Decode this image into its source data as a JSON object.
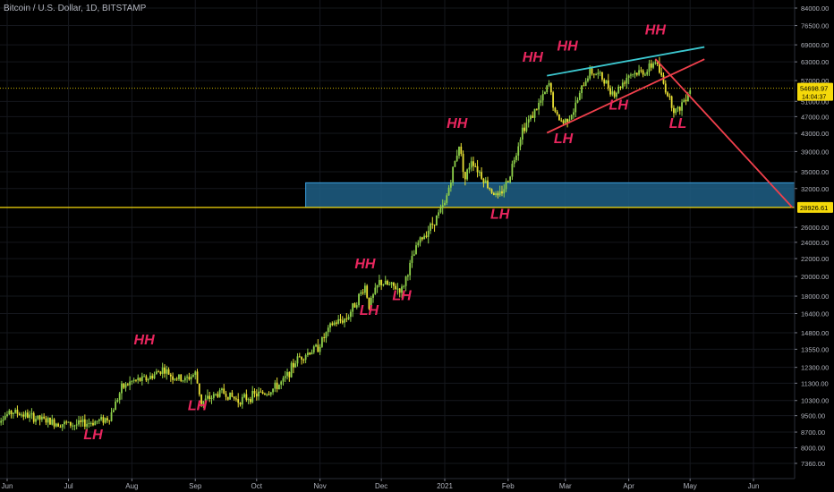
{
  "chart_data": {
    "type": "candlestick",
    "title": "Bitcoin / U.S. Dollar, 1D, BITSTAMP",
    "scale": "log",
    "y_tick_labels": [
      "84000.00",
      "76500.00",
      "69000.00",
      "63000.00",
      "57000.00",
      "51000.00",
      "47000.00",
      "43000.00",
      "39000.00",
      "35000.00",
      "32000.00",
      "28926.61",
      "26000.00",
      "24000.00",
      "22000.00",
      "20000.00",
      "18000.00",
      "16400.00",
      "14800.00",
      "13550.00",
      "12300.00",
      "11300.00",
      "10300.00",
      "9500.00",
      "8700.00",
      "8000.00",
      "7360.00"
    ],
    "x_tick_labels": [
      "Jun",
      "Jul",
      "Aug",
      "Sep",
      "Oct",
      "Nov",
      "Dec",
      "2021",
      "Feb",
      "Mar",
      "Apr",
      "May",
      "Jun"
    ],
    "current_price": {
      "value": 54698.97,
      "label": "54698.97",
      "countdown": "14:04:37"
    },
    "horizontal_level": {
      "value": 28926.61,
      "label": "28926.61",
      "color": "#f5d90a"
    },
    "support_zone": {
      "low": 28926.61,
      "high": 33000,
      "start": "Oct 26",
      "color": "#2a8fd6"
    },
    "annotations": [
      {
        "text": "HH",
        "date": "Aug 8",
        "price": 13900
      },
      {
        "text": "LH",
        "date": "Jul 14",
        "price": 8380
      },
      {
        "text": "LH",
        "date": "Sep 3",
        "price": 9780
      },
      {
        "text": "HH",
        "date": "Nov 24",
        "price": 20900
      },
      {
        "text": "LH",
        "date": "Nov 26",
        "price": 16300
      },
      {
        "text": "LH",
        "date": "Dec 12",
        "price": 17600
      },
      {
        "text": "HH",
        "date": "Jan 7",
        "price": 44300
      },
      {
        "text": "LH",
        "date": "Jan 28",
        "price": 27200
      },
      {
        "text": "HH",
        "date": "Feb 13",
        "price": 63000
      },
      {
        "text": "LH",
        "date": "Feb 28",
        "price": 40800
      },
      {
        "text": "HH",
        "date": "Mar 2",
        "price": 67000
      },
      {
        "text": "LH",
        "date": "Mar 27",
        "price": 48800
      },
      {
        "text": "HH",
        "date": "Apr 14",
        "price": 73000
      },
      {
        "text": "LL",
        "date": "Apr 25",
        "price": 44200
      }
    ],
    "trendlines": [
      {
        "name": "upper",
        "color": "#3cc8d0",
        "from": {
          "date": "Feb 20",
          "price": 58500
        },
        "to": {
          "date": "May 8",
          "price": 68200
        }
      },
      {
        "name": "lower",
        "color": "#f0404c",
        "from": {
          "date": "Feb 20",
          "price": 43100
        },
        "to": {
          "date": "May 8",
          "price": 63900
        }
      },
      {
        "name": "projection",
        "color": "#f0404c",
        "from": {
          "date": "Apr 14",
          "price": 64000
        },
        "to": {
          "date": "Jun 20",
          "price": 28926.61
        }
      }
    ],
    "price_path": [
      [
        "May 26",
        9200
      ],
      [
        "Jun 5",
        9700
      ],
      [
        "Jun 15",
        9400
      ],
      [
        "Jun 25",
        9150
      ],
      [
        "Jul 5",
        9050
      ],
      [
        "Jul 15",
        9200
      ],
      [
        "Jul 22",
        9400
      ],
      [
        "Jul 28",
        11000
      ],
      [
        "Aug 2",
        11400
      ],
      [
        "Aug 10",
        11600
      ],
      [
        "Aug 17",
        12200
      ],
      [
        "Aug 22",
        11700
      ],
      [
        "Aug 28",
        11500
      ],
      [
        "Sep 2",
        11900
      ],
      [
        "Sep 5",
        10200
      ],
      [
        "Sep 15",
        10800
      ],
      [
        "Sep 23",
        10300
      ],
      [
        "Oct 1",
        10600
      ],
      [
        "Oct 8",
        10800
      ],
      [
        "Oct 15",
        11400
      ],
      [
        "Oct 22",
        12900
      ],
      [
        "Nov 1",
        13700
      ],
      [
        "Nov 8",
        15500
      ],
      [
        "Nov 15",
        16000
      ],
      [
        "Nov 24",
        19000
      ],
      [
        "Nov 26",
        17100
      ],
      [
        "Dec 1",
        19400
      ],
      [
        "Dec 8",
        18900
      ],
      [
        "Dec 12",
        18600
      ],
      [
        "Dec 16",
        21200
      ],
      [
        "Dec 20",
        23900
      ],
      [
        "Dec 27",
        26500
      ],
      [
        "Jan 1",
        29400
      ],
      [
        "Jan 8",
        40500
      ],
      [
        "Jan 11",
        33700
      ],
      [
        "Jan 14",
        37500
      ],
      [
        "Jan 22",
        32500
      ],
      [
        "Jan 27",
        30400
      ],
      [
        "Feb 1",
        33500
      ],
      [
        "Feb 8",
        44000
      ],
      [
        "Feb 13",
        47500
      ],
      [
        "Feb 18",
        52000
      ],
      [
        "Feb 21",
        56000
      ],
      [
        "Feb 24",
        47500
      ],
      [
        "Feb 28",
        45500
      ],
      [
        "Mar 5",
        48500
      ],
      [
        "Mar 10",
        56000
      ],
      [
        "Mar 13",
        60000
      ],
      [
        "Mar 18",
        58500
      ],
      [
        "Mar 25",
        53000
      ],
      [
        "Apr 1",
        59000
      ],
      [
        "Apr 10",
        60000
      ],
      [
        "Apr 14",
        63500
      ],
      [
        "Apr 18",
        56000
      ],
      [
        "Apr 23",
        49000
      ],
      [
        "Apr 25",
        48500
      ],
      [
        "May 1",
        54698.97
      ]
    ]
  }
}
